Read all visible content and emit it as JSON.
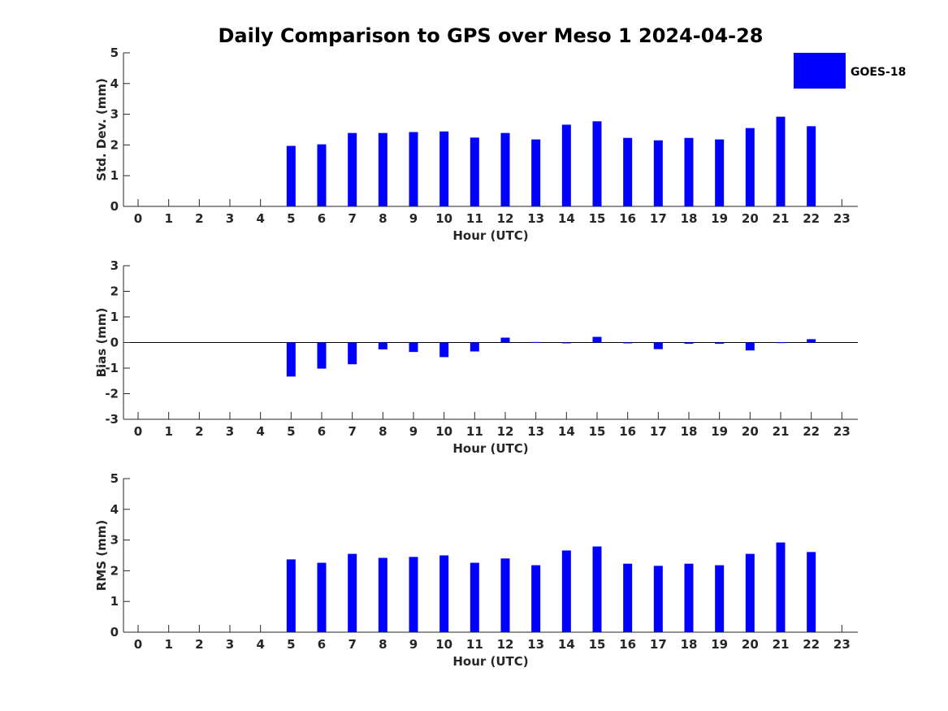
{
  "chart_data": {
    "title": "Daily Comparison to GPS over Meso 1 2024-04-28",
    "legend": {
      "entries": [
        {
          "name": "GOES-18",
          "color": "#0000ff"
        }
      ],
      "placement": "top-right"
    },
    "bar_color": "#0000ff",
    "panels": [
      {
        "type": "bar",
        "ylabel": "Std. Dev. (mm)",
        "xlabel": "Hour (UTC)",
        "ylim": [
          0,
          5
        ],
        "yticks": [
          0,
          1,
          2,
          3,
          4,
          5
        ],
        "categories": [
          "0",
          "1",
          "2",
          "3",
          "4",
          "5",
          "6",
          "7",
          "8",
          "9",
          "10",
          "11",
          "12",
          "13",
          "14",
          "15",
          "16",
          "17",
          "18",
          "19",
          "20",
          "21",
          "22",
          "23"
        ],
        "values": [
          null,
          null,
          null,
          null,
          null,
          1.97,
          2.02,
          2.39,
          2.39,
          2.42,
          2.44,
          2.24,
          2.39,
          2.18,
          2.66,
          2.77,
          2.23,
          2.15,
          2.23,
          2.18,
          2.55,
          2.92,
          2.61,
          null
        ]
      },
      {
        "type": "bar",
        "ylabel": "Bias (mm)",
        "xlabel": "Hour (UTC)",
        "ylim": [
          -3,
          3
        ],
        "yticks": [
          -3,
          -2,
          -1,
          0,
          1,
          2,
          3
        ],
        "categories": [
          "0",
          "1",
          "2",
          "3",
          "4",
          "5",
          "6",
          "7",
          "8",
          "9",
          "10",
          "11",
          "12",
          "13",
          "14",
          "15",
          "16",
          "17",
          "18",
          "19",
          "20",
          "21",
          "22",
          "23"
        ],
        "values": [
          null,
          null,
          null,
          null,
          null,
          -1.33,
          -1.02,
          -0.85,
          -0.27,
          -0.37,
          -0.57,
          -0.35,
          0.19,
          0.02,
          0.0,
          0.22,
          0.0,
          -0.26,
          -0.05,
          -0.05,
          -0.31,
          0.01,
          0.13,
          null
        ]
      },
      {
        "type": "bar",
        "ylabel": "RMS (mm)",
        "xlabel": "Hour (UTC)",
        "ylim": [
          0,
          5
        ],
        "yticks": [
          0,
          1,
          2,
          3,
          4,
          5
        ],
        "categories": [
          "0",
          "1",
          "2",
          "3",
          "4",
          "5",
          "6",
          "7",
          "8",
          "9",
          "10",
          "11",
          "12",
          "13",
          "14",
          "15",
          "16",
          "17",
          "18",
          "19",
          "20",
          "21",
          "22",
          "23"
        ],
        "values": [
          null,
          null,
          null,
          null,
          null,
          2.37,
          2.26,
          2.55,
          2.42,
          2.45,
          2.5,
          2.26,
          2.4,
          2.18,
          2.66,
          2.79,
          2.23,
          2.16,
          2.23,
          2.18,
          2.55,
          2.92,
          2.61,
          null
        ]
      }
    ]
  }
}
